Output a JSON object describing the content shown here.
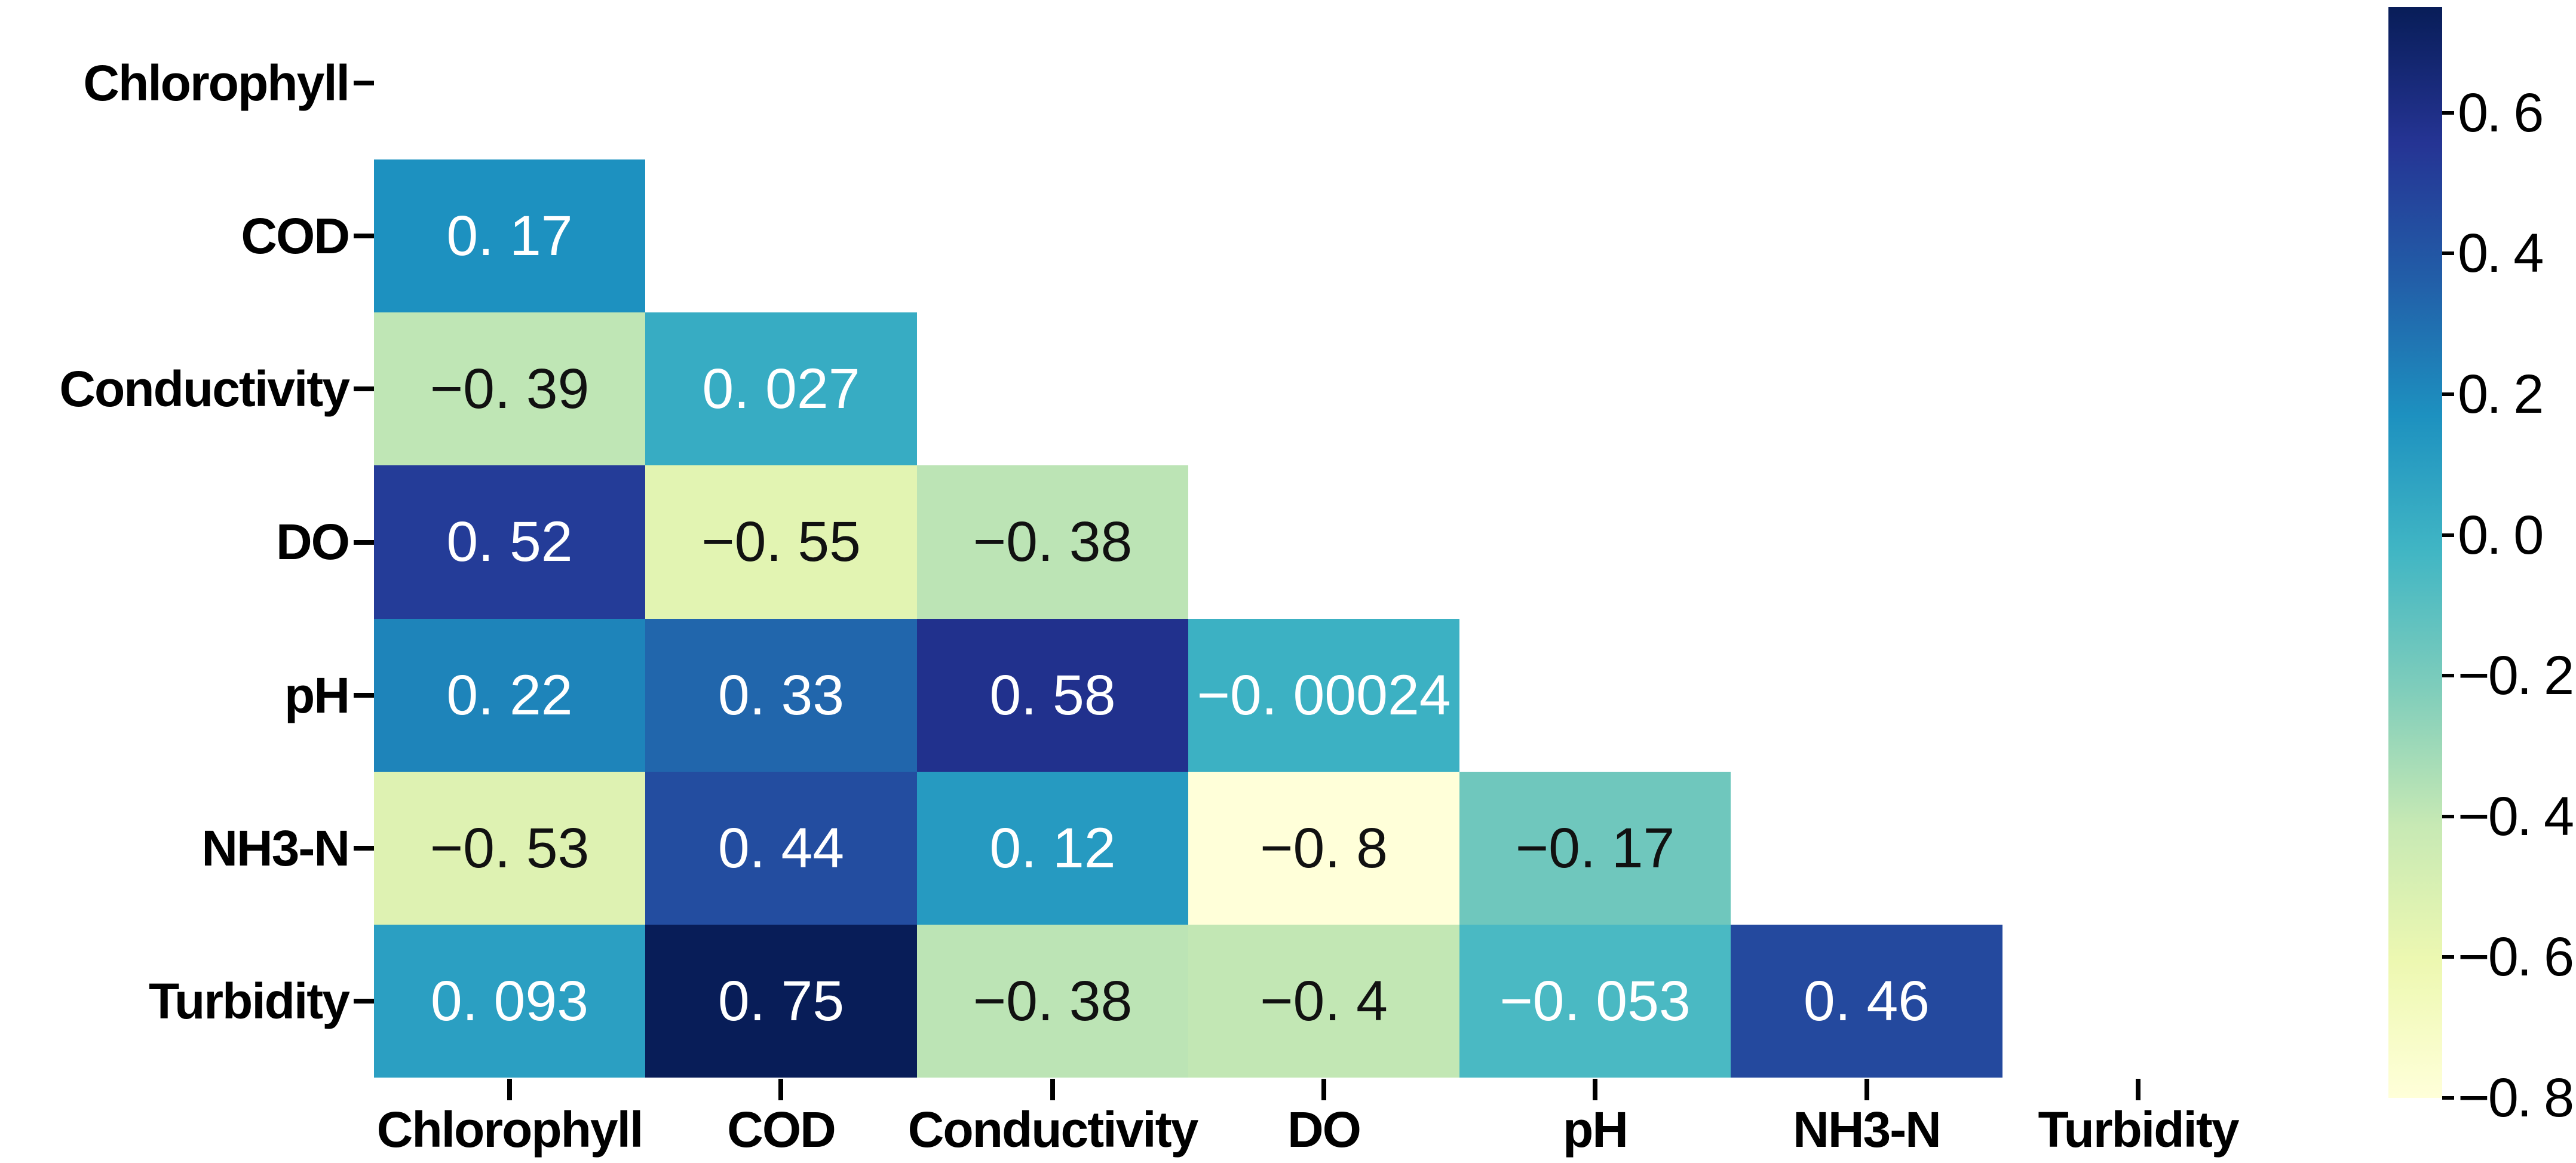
{
  "chart_data": {
    "type": "heatmap",
    "title": "",
    "description": "Lower-triangle correlation heatmap (diagonal and upper triangle masked)",
    "colormap": "YlGnBu",
    "vmin": -0.8,
    "vmax": 0.75,
    "variables": [
      "Chlorophyll",
      "COD",
      "Conductivity",
      "DO",
      "pH",
      "NH3-N",
      "Turbidity"
    ],
    "rows": [
      {
        "row": "COD",
        "cells": [
          {
            "col": "Chlorophyll",
            "value": 0.17,
            "label": "0. 17",
            "bg": "#1d91c0",
            "fg": "#ffffff"
          }
        ]
      },
      {
        "row": "Conductivity",
        "cells": [
          {
            "col": "Chlorophyll",
            "value": -0.39,
            "label": "−0. 39",
            "bg": "#bfe6b5",
            "fg": "#111111"
          },
          {
            "col": "COD",
            "value": 0.027,
            "label": "0. 027",
            "bg": "#37acc3",
            "fg": "#ffffff"
          }
        ]
      },
      {
        "row": "DO",
        "cells": [
          {
            "col": "Chlorophyll",
            "value": 0.52,
            "label": "0. 52",
            "bg": "#243c98",
            "fg": "#ffffff"
          },
          {
            "col": "COD",
            "value": -0.55,
            "label": "−0. 55",
            "bg": "#e2f4b2",
            "fg": "#111111"
          },
          {
            "col": "Conductivity",
            "value": -0.38,
            "label": "−0. 38",
            "bg": "#bce4b5",
            "fg": "#111111"
          }
        ]
      },
      {
        "row": "pH",
        "cells": [
          {
            "col": "Chlorophyll",
            "value": 0.22,
            "label": "0. 22",
            "bg": "#1e84ba",
            "fg": "#ffffff"
          },
          {
            "col": "COD",
            "value": 0.33,
            "label": "0. 33",
            "bg": "#2166ac",
            "fg": "#ffffff"
          },
          {
            "col": "Conductivity",
            "value": 0.58,
            "label": "0. 58",
            "bg": "#21318d",
            "fg": "#ffffff"
          },
          {
            "col": "DO",
            "value": -0.00024,
            "label": "−0. 00024",
            "bg": "#3cb1c3",
            "fg": "#ffffff"
          }
        ]
      },
      {
        "row": "NH3-N",
        "cells": [
          {
            "col": "Chlorophyll",
            "value": -0.53,
            "label": "−0. 53",
            "bg": "#def2b2",
            "fg": "#111111"
          },
          {
            "col": "COD",
            "value": 0.44,
            "label": "0. 44",
            "bg": "#234da0",
            "fg": "#ffffff"
          },
          {
            "col": "Conductivity",
            "value": 0.12,
            "label": "0. 12",
            "bg": "#269ac1",
            "fg": "#ffffff"
          },
          {
            "col": "DO",
            "value": -0.8,
            "label": "−0. 8",
            "bg": "#ffffd9",
            "fg": "#111111"
          },
          {
            "col": "pH",
            "value": -0.17,
            "label": "−0. 17",
            "bg": "#6fc7bd",
            "fg": "#111111"
          }
        ]
      },
      {
        "row": "Turbidity",
        "cells": [
          {
            "col": "Chlorophyll",
            "value": 0.093,
            "label": "0. 093",
            "bg": "#2b9fc2",
            "fg": "#ffffff"
          },
          {
            "col": "COD",
            "value": 0.75,
            "label": "0. 75",
            "bg": "#081d58",
            "fg": "#ffffff"
          },
          {
            "col": "Conductivity",
            "value": -0.38,
            "label": "−0. 38",
            "bg": "#bce4b5",
            "fg": "#111111"
          },
          {
            "col": "DO",
            "value": -0.4,
            "label": "−0. 4",
            "bg": "#c2e7b4",
            "fg": "#111111"
          },
          {
            "col": "pH",
            "value": -0.053,
            "label": "−0. 053",
            "bg": "#4ab9c3",
            "fg": "#ffffff"
          },
          {
            "col": "NH3-N",
            "value": 0.46,
            "label": "0. 46",
            "bg": "#24499e",
            "fg": "#ffffff"
          }
        ]
      }
    ],
    "colorbar": {
      "position": "right",
      "ticks": [
        {
          "value": 0.6,
          "label": "0. 6"
        },
        {
          "value": 0.4,
          "label": "0. 4"
        },
        {
          "value": 0.2,
          "label": "0. 2"
        },
        {
          "value": 0.0,
          "label": "0. 0"
        },
        {
          "value": -0.2,
          "label": "−0. 2"
        },
        {
          "value": -0.4,
          "label": "−0. 4"
        },
        {
          "value": -0.6,
          "label": "−0. 6"
        },
        {
          "value": -0.8,
          "label": "−0. 8"
        }
      ],
      "gradient_top_to_bottom": [
        "#081d58",
        "#253494",
        "#225ea8",
        "#1d91c0",
        "#41b6c4",
        "#7fcdbb",
        "#c7e9b4",
        "#edf8b1",
        "#ffffd9"
      ]
    }
  }
}
